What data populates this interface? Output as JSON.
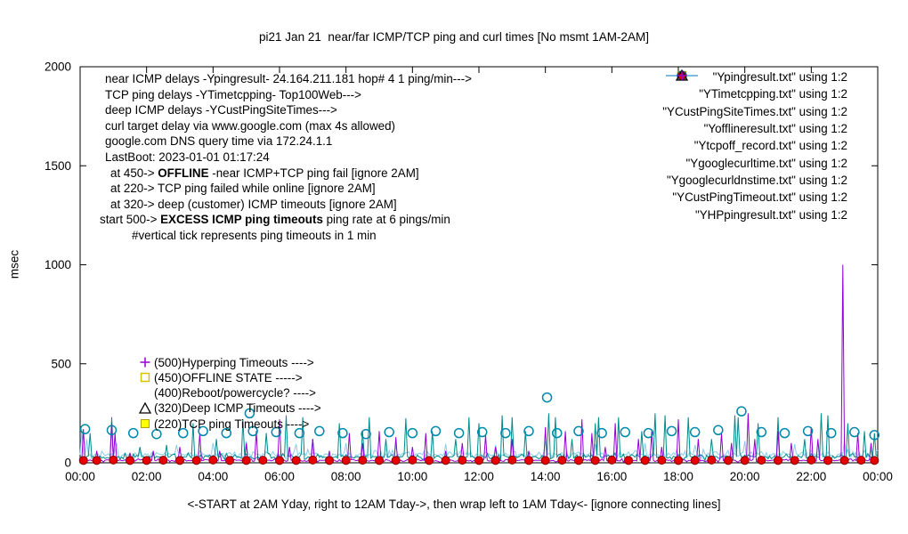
{
  "chart_data": {
    "type": "mixed",
    "title": "pi21 Jan 21  near/far ICMP/TCP ping and curl times [No msmt 1AM-2AM]",
    "xlabel": "<-START at 2AM Yday, right to 12AM Tday->, then wrap left to 1AM Tday<- [ignore connecting lines]",
    "ylabel": "msec",
    "ylim": [
      0,
      2000
    ],
    "xlim_hours": [
      0,
      24
    ],
    "grid": false,
    "legend_position": "top-right-inside",
    "y_ticks": [
      0,
      500,
      1000,
      1500,
      2000
    ],
    "x_tick_hours": [
      0,
      2,
      4,
      6,
      8,
      10,
      12,
      14,
      16,
      18,
      20,
      22,
      24
    ],
    "x_ticks": [
      "00:00",
      "02:00",
      "04:00",
      "06:00",
      "08:00",
      "10:00",
      "12:00",
      "14:00",
      "16:00",
      "18:00",
      "20:00",
      "22:00",
      "00:00"
    ],
    "series": [
      {
        "label": "\"Ypingresult.txt\" using 1:2",
        "type": "line",
        "color": "#9400d3",
        "baseline": 12,
        "noise": 10,
        "spikes": [
          [
            0.1,
            170
          ],
          [
            0.5,
            60
          ],
          [
            0.95,
            200
          ],
          [
            1.05,
            150
          ],
          [
            1.5,
            50
          ],
          [
            2.2,
            60
          ],
          [
            3.0,
            80
          ],
          [
            3.6,
            150
          ],
          [
            4.2,
            60
          ],
          [
            5.0,
            100
          ],
          [
            5.3,
            160
          ],
          [
            6.0,
            220
          ],
          [
            6.3,
            80
          ],
          [
            7.0,
            120
          ],
          [
            7.5,
            60
          ],
          [
            8.1,
            150
          ],
          [
            8.5,
            100
          ],
          [
            9.0,
            160
          ],
          [
            9.5,
            130
          ],
          [
            10.0,
            80
          ],
          [
            10.4,
            150
          ],
          [
            11.0,
            60
          ],
          [
            11.5,
            100
          ],
          [
            12.2,
            140
          ],
          [
            12.5,
            80
          ],
          [
            13.0,
            120
          ],
          [
            13.5,
            60
          ],
          [
            14.0,
            180
          ],
          [
            14.6,
            160
          ],
          [
            15.1,
            220
          ],
          [
            15.4,
            150
          ],
          [
            15.8,
            80
          ],
          [
            16.1,
            200
          ],
          [
            16.8,
            120
          ],
          [
            17.2,
            160
          ],
          [
            17.5,
            80
          ],
          [
            18.0,
            220
          ],
          [
            18.6,
            120
          ],
          [
            19.3,
            150
          ],
          [
            19.6,
            100
          ],
          [
            20.1,
            250
          ],
          [
            20.3,
            120
          ],
          [
            21.0,
            160
          ],
          [
            21.4,
            100
          ],
          [
            22.0,
            180
          ],
          [
            22.2,
            120
          ],
          [
            22.95,
            1000
          ],
          [
            23.4,
            150
          ],
          [
            23.8,
            100
          ]
        ]
      },
      {
        "label": "\"YTimetcpping.txt\" using 1:2",
        "type": "line",
        "color": "#008b8b",
        "baseline": 30,
        "noise": 22,
        "spikes": [
          [
            0.3,
            150
          ],
          [
            0.95,
            230
          ],
          [
            1.8,
            80
          ],
          [
            2.6,
            90
          ],
          [
            3.4,
            200
          ],
          [
            4.1,
            120
          ],
          [
            4.9,
            220
          ],
          [
            5.6,
            150
          ],
          [
            6.2,
            240
          ],
          [
            6.7,
            230
          ],
          [
            7.0,
            120
          ],
          [
            7.8,
            200
          ],
          [
            8.5,
            160
          ],
          [
            8.7,
            230
          ],
          [
            9.2,
            120
          ],
          [
            9.8,
            225
          ],
          [
            10.6,
            160
          ],
          [
            11.3,
            120
          ],
          [
            11.7,
            230
          ],
          [
            12.0,
            200
          ],
          [
            12.7,
            240
          ],
          [
            13.0,
            230
          ],
          [
            13.4,
            160
          ],
          [
            14.1,
            250
          ],
          [
            14.3,
            230
          ],
          [
            14.8,
            120
          ],
          [
            15.5,
            200
          ],
          [
            15.6,
            230
          ],
          [
            16.2,
            230
          ],
          [
            16.9,
            160
          ],
          [
            17.3,
            250
          ],
          [
            17.6,
            240
          ],
          [
            18.3,
            230
          ],
          [
            19.0,
            120
          ],
          [
            19.7,
            240
          ],
          [
            19.8,
            230
          ],
          [
            20.4,
            200
          ],
          [
            21.0,
            230
          ],
          [
            21.8,
            120
          ],
          [
            22.3,
            250
          ],
          [
            22.5,
            240
          ],
          [
            23.1,
            200
          ],
          [
            23.6,
            160
          ],
          [
            23.9,
            150
          ]
        ]
      },
      {
        "label": "\"YCustPingSiteTimes.txt\" using 1:2",
        "type": "line",
        "color": "#87ceeb",
        "baseline": 42,
        "noise": 30,
        "spikes": [
          [
            0.05,
            170
          ],
          [
            0.2,
            120
          ],
          [
            1.1,
            100
          ],
          [
            2.9,
            90
          ],
          [
            4.0,
            100
          ],
          [
            5.0,
            110
          ],
          [
            6.5,
            95
          ],
          [
            8.0,
            100
          ],
          [
            9.5,
            90
          ],
          [
            11.0,
            95
          ],
          [
            12.5,
            90
          ],
          [
            14.0,
            110
          ],
          [
            15.5,
            95
          ],
          [
            17.0,
            100
          ],
          [
            18.5,
            90
          ],
          [
            20.0,
            110
          ],
          [
            21.5,
            95
          ],
          [
            23.0,
            120
          ]
        ]
      },
      {
        "label": "\"Yofflineresult.txt\" using 1:2",
        "type": "scatter",
        "marker": "open-square",
        "color": "#d6c300",
        "fill": "none",
        "points": []
      },
      {
        "label": "\"Ytcpoff_record.txt\" using 1:2",
        "type": "scatter",
        "marker": "filled-square",
        "color": "#b0a000",
        "fill": "#ffff00",
        "points": []
      },
      {
        "label": "\"Ygooglecurltime.txt\" using 1:2",
        "type": "scatter",
        "marker": "open-circle",
        "color": "#0088aa",
        "fill": "none",
        "points": [
          [
            0.15,
            170
          ],
          [
            0.95,
            165
          ],
          [
            1.6,
            150
          ],
          [
            2.3,
            145
          ],
          [
            3.1,
            150
          ],
          [
            3.7,
            160
          ],
          [
            4.4,
            150
          ],
          [
            5.1,
            250
          ],
          [
            5.2,
            160
          ],
          [
            5.9,
            155
          ],
          [
            6.6,
            150
          ],
          [
            7.2,
            160
          ],
          [
            7.9,
            150
          ],
          [
            8.6,
            145
          ],
          [
            9.3,
            155
          ],
          [
            10.0,
            150
          ],
          [
            10.7,
            160
          ],
          [
            11.4,
            150
          ],
          [
            12.1,
            155
          ],
          [
            12.8,
            150
          ],
          [
            13.5,
            160
          ],
          [
            14.05,
            330
          ],
          [
            14.35,
            150
          ],
          [
            15.0,
            160
          ],
          [
            15.7,
            150
          ],
          [
            16.4,
            155
          ],
          [
            17.1,
            150
          ],
          [
            17.8,
            160
          ],
          [
            18.5,
            155
          ],
          [
            19.2,
            165
          ],
          [
            19.9,
            260
          ],
          [
            20.5,
            155
          ],
          [
            21.2,
            150
          ],
          [
            21.9,
            160
          ],
          [
            22.6,
            150
          ],
          [
            23.3,
            155
          ],
          [
            23.9,
            140
          ]
        ]
      },
      {
        "label": "\"Ygooglecurldnstime.txt\" using 1:2",
        "type": "scatter",
        "marker": "filled-circle",
        "color": "#8b0000",
        "fill": "#e60000",
        "points": [
          [
            0.1,
            12
          ],
          [
            0.5,
            12
          ],
          [
            1.0,
            14
          ],
          [
            1.5,
            12
          ],
          [
            2.0,
            12
          ],
          [
            2.5,
            13
          ],
          [
            3.0,
            12
          ],
          [
            3.5,
            12
          ],
          [
            4.0,
            14
          ],
          [
            4.5,
            12
          ],
          [
            5.0,
            12
          ],
          [
            5.5,
            13
          ],
          [
            6.0,
            12
          ],
          [
            6.5,
            12
          ],
          [
            7.0,
            14
          ],
          [
            7.5,
            12
          ],
          [
            8.0,
            12
          ],
          [
            8.5,
            13
          ],
          [
            9.0,
            12
          ],
          [
            9.5,
            12
          ],
          [
            10.0,
            14
          ],
          [
            10.5,
            12
          ],
          [
            11.0,
            12
          ],
          [
            11.5,
            13
          ],
          [
            12.0,
            12
          ],
          [
            12.5,
            12
          ],
          [
            13.0,
            14
          ],
          [
            13.5,
            12
          ],
          [
            14.0,
            12
          ],
          [
            14.5,
            13
          ],
          [
            15.0,
            12
          ],
          [
            15.5,
            12
          ],
          [
            16.0,
            14
          ],
          [
            16.5,
            12
          ],
          [
            17.0,
            12
          ],
          [
            17.5,
            13
          ],
          [
            18.0,
            12
          ],
          [
            18.5,
            12
          ],
          [
            19.0,
            14
          ],
          [
            19.5,
            12
          ],
          [
            20.0,
            12
          ],
          [
            20.5,
            13
          ],
          [
            21.0,
            12
          ],
          [
            21.5,
            12
          ],
          [
            22.0,
            14
          ],
          [
            22.5,
            12
          ],
          [
            23.0,
            12
          ],
          [
            23.5,
            13
          ],
          [
            23.9,
            12
          ]
        ]
      },
      {
        "label": "\"YCustPingTimeout.txt\" using 1:2",
        "type": "scatter",
        "marker": "triangle",
        "color": "#000000",
        "fill": "none",
        "points": []
      },
      {
        "label": "\"YHPpingresult.txt\" using 1:2",
        "type": "scatter",
        "marker": "plus",
        "color": "#9400d3",
        "fill": "none",
        "points": []
      }
    ],
    "annotations": {
      "top": [
        {
          "text": "near ICMP delays -Ypingresult- 24.164.211.181 hop# 4 1 ping/min--->"
        },
        {
          "text": "TCP ping delays -YTimetcpping- Top100Web--->"
        },
        {
          "text": "deep ICMP delays -YCustPingSiteTimes--->"
        },
        {
          "text": "curl target delay via www.google.com (max 4s allowed)"
        },
        {
          "text": "google.com DNS query time via 172.24.1.1"
        },
        {
          "text": "LastBoot: 2023-01-01 01:17:24"
        },
        {
          "pre": "at 450-> ",
          "bold": "OFFLINE",
          "post": " -near ICMP+TCP ping fail [ignore 2AM]"
        },
        {
          "text": "at 220-> TCP ping failed while online [ignore 2AM]"
        },
        {
          "text": "at 320-> deep (customer) ICMP timeouts [ignore 2AM]"
        },
        {
          "pre": "start 500-> ",
          "bold": "EXCESS ICMP ping timeouts",
          "post": " ping rate at 6 pings/min"
        },
        {
          "text": "#vertical tick represents ping timeouts in 1 min"
        }
      ],
      "mid": [
        {
          "label": "(500)Hyperping Timeouts ---->",
          "marker": "plus",
          "msec": 500
        },
        {
          "label": "(450)OFFLINE STATE ----->",
          "marker": "open-square",
          "msec": 450
        },
        {
          "label": "(400)Reboot/powercycle? ---->",
          "marker": "none",
          "msec": 400
        },
        {
          "label": "(320)Deep ICMP Timeouts ---->",
          "marker": "triangle",
          "msec": 320
        },
        {
          "label": "(220)TCP ping Timeouts ---->",
          "marker": "filled-square",
          "msec": 220
        }
      ]
    }
  }
}
